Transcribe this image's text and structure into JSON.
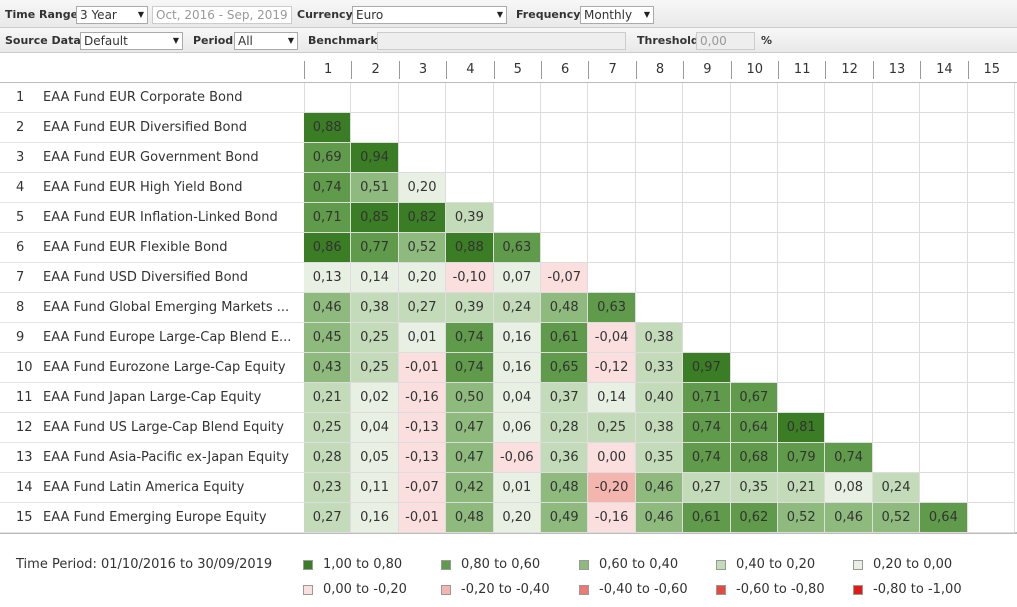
{
  "toolbar": {
    "time_range_label": "Time Range",
    "time_range": "3 Year",
    "date_range": "Oct, 2016 - Sep, 2019",
    "currency_label": "Currency",
    "currency": "Euro",
    "frequency_label": "Frequency",
    "frequency": "Monthly",
    "source_label": "Source Data",
    "source": "Default",
    "period_label": "Period",
    "period": "All",
    "benchmark_label": "Benchmark",
    "threshold_label": "Threshold",
    "threshold": "0,00",
    "threshold_unit": "%"
  },
  "matrix": {
    "columns": [
      1,
      2,
      3,
      4,
      5,
      6,
      7,
      8,
      9,
      10,
      11,
      12,
      13,
      14,
      15
    ],
    "rows": [
      {
        "index": 1,
        "name": "EAA Fund EUR Corporate Bond",
        "values": []
      },
      {
        "index": 2,
        "name": "EAA Fund EUR Diversified Bond",
        "values": [
          "0,88"
        ]
      },
      {
        "index": 3,
        "name": "EAA Fund EUR Government Bond",
        "values": [
          "0,69",
          "0,94"
        ]
      },
      {
        "index": 4,
        "name": "EAA Fund EUR High Yield Bond",
        "values": [
          "0,74",
          "0,51",
          "0,20"
        ]
      },
      {
        "index": 5,
        "name": "EAA Fund EUR Inflation-Linked Bond",
        "values": [
          "0,71",
          "0,85",
          "0,82",
          "0,39"
        ]
      },
      {
        "index": 6,
        "name": "EAA Fund EUR Flexible Bond",
        "values": [
          "0,86",
          "0,77",
          "0,52",
          "0,88",
          "0,63"
        ]
      },
      {
        "index": 7,
        "name": "EAA Fund USD Diversified Bond",
        "values": [
          "0,13",
          "0,14",
          "0,20",
          "-0,10",
          "0,07",
          "-0,07"
        ]
      },
      {
        "index": 8,
        "name": "EAA Fund Global Emerging Markets ...",
        "values": [
          "0,46",
          "0,38",
          "0,27",
          "0,39",
          "0,24",
          "0,48",
          "0,63"
        ]
      },
      {
        "index": 9,
        "name": "EAA Fund Europe Large-Cap Blend E...",
        "values": [
          "0,45",
          "0,25",
          "0,01",
          "0,74",
          "0,16",
          "0,61",
          "-0,04",
          "0,38"
        ]
      },
      {
        "index": 10,
        "name": "EAA Fund Eurozone Large-Cap Equity",
        "values": [
          "0,43",
          "0,25",
          "-0,01",
          "0,74",
          "0,16",
          "0,65",
          "-0,12",
          "0,33",
          "0,97"
        ]
      },
      {
        "index": 11,
        "name": "EAA Fund Japan Large-Cap Equity",
        "values": [
          "0,21",
          "0,02",
          "-0,16",
          "0,50",
          "0,04",
          "0,37",
          "0,14",
          "0,40",
          "0,71",
          "0,67"
        ]
      },
      {
        "index": 12,
        "name": "EAA Fund US Large-Cap Blend Equity",
        "values": [
          "0,25",
          "0,04",
          "-0,13",
          "0,47",
          "0,06",
          "0,28",
          "0,25",
          "0,38",
          "0,74",
          "0,64",
          "0,81"
        ]
      },
      {
        "index": 13,
        "name": "EAA Fund Asia-Pacific ex-Japan Equity",
        "values": [
          "0,28",
          "0,05",
          "-0,13",
          "0,47",
          "-0,06",
          "0,36",
          "0,00",
          "0,35",
          "0,74",
          "0,68",
          "0,79",
          "0,74"
        ]
      },
      {
        "index": 14,
        "name": "EAA Fund Latin America Equity",
        "values": [
          "0,23",
          "0,11",
          "-0,07",
          "0,42",
          "0,01",
          "0,48",
          "-0,20",
          "0,46",
          "0,27",
          "0,35",
          "0,21",
          "0,08",
          "0,24"
        ]
      },
      {
        "index": 15,
        "name": "EAA Fund Emerging Europe Equity",
        "values": [
          "0,27",
          "0,16",
          "-0,01",
          "0,48",
          "0,20",
          "0,49",
          "-0,16",
          "0,46",
          "0,61",
          "0,62",
          "0,52",
          "0,46",
          "0,52",
          "0,64"
        ]
      }
    ]
  },
  "footer": {
    "time_period": "Time Period: 01/10/2016 to 30/09/2019",
    "legend": [
      {
        "label": "1,00 to 0,80",
        "color": "#3b7d24"
      },
      {
        "label": "0,80 to 0,60",
        "color": "#5f9b4a"
      },
      {
        "label": "0,60 to 0,40",
        "color": "#8fba7e"
      },
      {
        "label": "0,40 to 0,20",
        "color": "#c4dbba"
      },
      {
        "label": "0,20 to 0,00",
        "color": "#e7f0e3"
      },
      {
        "label": "0,00 to -0,20",
        "color": "#fbdede"
      },
      {
        "label": "-0,20 to -0,40",
        "color": "#f4b5af"
      },
      {
        "label": "-0,40 to -0,60",
        "color": "#eb7b72"
      },
      {
        "label": "-0,60 to -0,80",
        "color": "#e4483f"
      },
      {
        "label": "-0,80 to -1,00",
        "color": "#e01b12"
      }
    ]
  }
}
